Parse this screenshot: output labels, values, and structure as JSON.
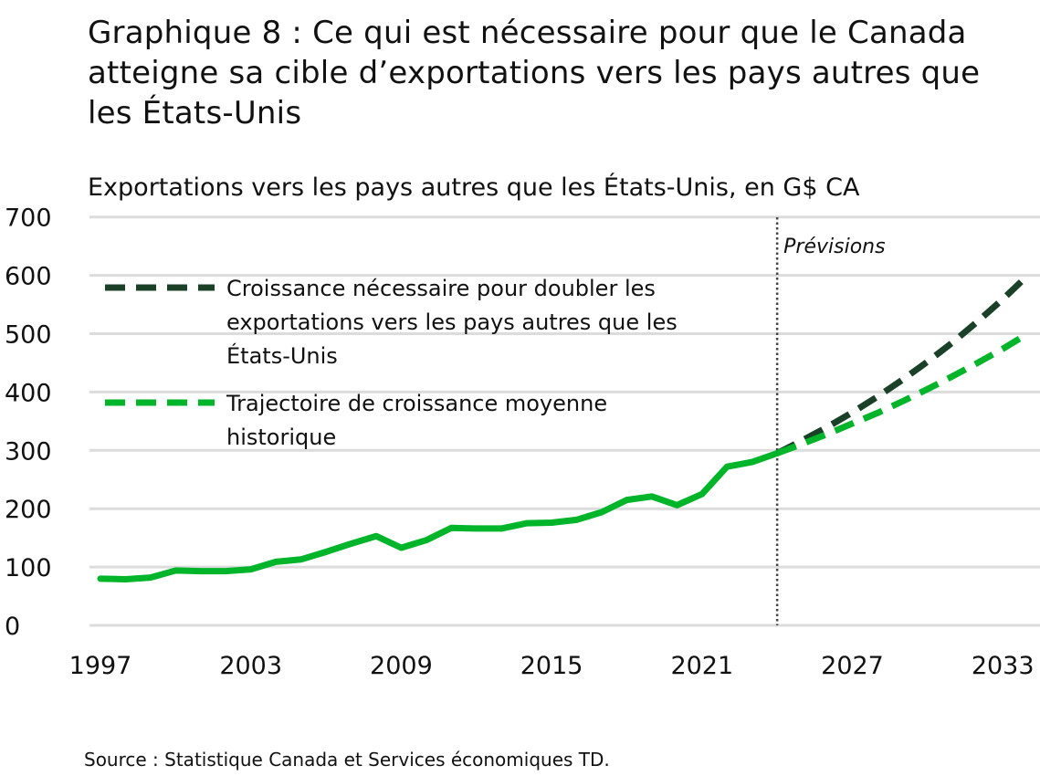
{
  "chart_data": {
    "type": "line",
    "title": "Graphique 8 : Ce qui est nécessaire pour que le Canada atteigne sa cible d’exportations vers les pays autres que les États-Unis",
    "subtitle": "Exportations vers les pays autres que les États-Unis, en G$ CA",
    "xlabel": "",
    "ylabel": "",
    "ylim": [
      0,
      700
    ],
    "xlim": [
      1997,
      2034
    ],
    "yticks": [
      "0",
      "100",
      "200",
      "300",
      "400",
      "500",
      "600",
      "700"
    ],
    "xticks": [
      "1997",
      "2003",
      "2009",
      "2015",
      "2021",
      "2027",
      "2033"
    ],
    "grid": true,
    "annotation": "Prévisions",
    "forecast_start": 2024,
    "legend_position": "top-left",
    "series": [
      {
        "name": "",
        "style": "solid",
        "color": "#00b52a",
        "x": [
          1997,
          1998,
          1999,
          2000,
          2001,
          2002,
          2003,
          2004,
          2005,
          2006,
          2007,
          2008,
          2009,
          2010,
          2011,
          2012,
          2013,
          2014,
          2015,
          2016,
          2017,
          2018,
          2019,
          2020,
          2021,
          2022,
          2023,
          2024
        ],
        "y": [
          80,
          79,
          82,
          94,
          93,
          93,
          96,
          109,
          113,
          126,
          140,
          153,
          133,
          146,
          167,
          166,
          166,
          175,
          176,
          181,
          194,
          215,
          221,
          206,
          225,
          272,
          280,
          295
        ]
      },
      {
        "name": "Croissance nécessaire pour doubler les exportations vers les pays autres que les États-Unis",
        "legend_lines": [
          "Croissance nécessaire pour doubler les",
          "exportations vers les pays autres que les",
          "États-Unis"
        ],
        "style": "dashed",
        "color": "#1a4028",
        "x": [
          2024,
          2025,
          2026,
          2027,
          2028,
          2029,
          2030,
          2031,
          2032,
          2033,
          2034
        ],
        "y": [
          295,
          317,
          340,
          365,
          392,
          421,
          452,
          485,
          521,
          559,
          600
        ]
      },
      {
        "name": "Trajectoire de croissance moyenne historique",
        "legend_lines": [
          "Trajectoire de croissance moyenne",
          "historique"
        ],
        "style": "dashed",
        "color": "#00b52a",
        "x": [
          2024,
          2025,
          2026,
          2027,
          2028,
          2029,
          2030,
          2031,
          2032,
          2033,
          2034
        ],
        "y": [
          295,
          311,
          328,
          346,
          364,
          384,
          405,
          427,
          450,
          474,
          500
        ]
      }
    ]
  },
  "source": "Source : Statistique Canada et Services économiques TD."
}
